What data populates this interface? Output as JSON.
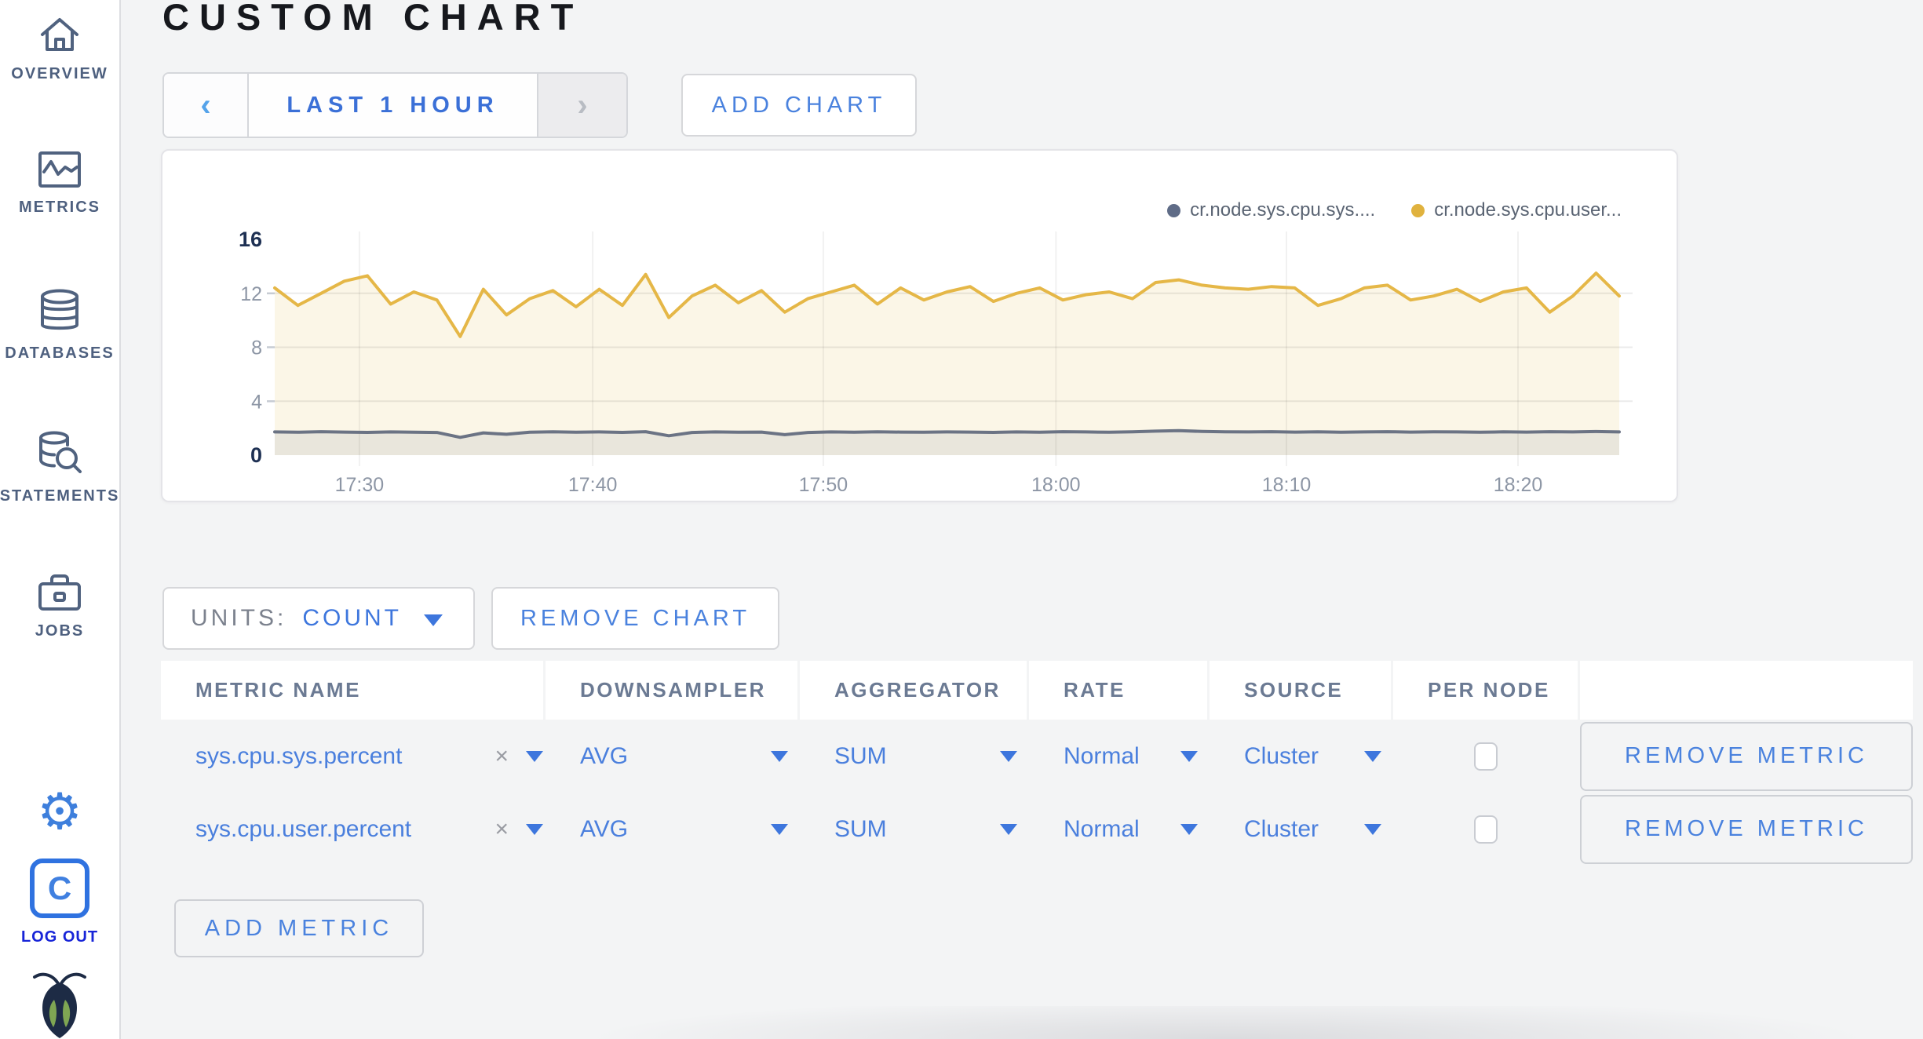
{
  "header": {
    "title": "CUSTOM CHART"
  },
  "sidebar": {
    "items": [
      {
        "label": "OVERVIEW",
        "icon": "home-icon"
      },
      {
        "label": "METRICS",
        "icon": "metrics-icon"
      },
      {
        "label": "DATABASES",
        "icon": "databases-icon"
      },
      {
        "label": "STATEMENTS",
        "icon": "statements-icon"
      },
      {
        "label": "JOBS",
        "icon": "jobs-icon"
      }
    ],
    "settings_icon": "gear-icon",
    "settings_glyph": "⚙",
    "logout": {
      "logo_letter": "C",
      "label": "LOG OUT"
    },
    "brand_icon": "cockroach-logo"
  },
  "toolbar": {
    "prev_arrow": "‹",
    "time_range": "LAST 1 HOUR",
    "next_arrow": "›",
    "add_chart": "ADD CHART"
  },
  "chart_data": {
    "type": "line",
    "title": "",
    "ylim": [
      0,
      16
    ],
    "y_ticks": [
      0,
      4,
      8,
      12,
      16
    ],
    "grid": true,
    "legend_position": "top-right",
    "x_range": [
      "17:26",
      "18:24"
    ],
    "x_ticks": [
      {
        "label": "17:30",
        "f": 0.063
      },
      {
        "label": "17:40",
        "f": 0.2365
      },
      {
        "label": "17:50",
        "f": 0.408
      },
      {
        "label": "18:00",
        "f": 0.581
      },
      {
        "label": "18:10",
        "f": 0.7525
      },
      {
        "label": "18:20",
        "f": 0.9247
      }
    ],
    "series": [
      {
        "name": "cr.node.sys.cpu.sys....",
        "line": "#6b7384",
        "fill": "#e9e6dc",
        "dot": "#5f6c87",
        "values": [
          1.72,
          1.7,
          1.74,
          1.71,
          1.69,
          1.72,
          1.7,
          1.68,
          1.32,
          1.65,
          1.55,
          1.7,
          1.73,
          1.7,
          1.72,
          1.69,
          1.74,
          1.44,
          1.68,
          1.72,
          1.7,
          1.71,
          1.52,
          1.68,
          1.72,
          1.7,
          1.73,
          1.71,
          1.7,
          1.72,
          1.71,
          1.69,
          1.72,
          1.7,
          1.74,
          1.72,
          1.7,
          1.73,
          1.78,
          1.82,
          1.76,
          1.73,
          1.72,
          1.74,
          1.71,
          1.73,
          1.7,
          1.72,
          1.74,
          1.71,
          1.73,
          1.72,
          1.7,
          1.73,
          1.71,
          1.74,
          1.72,
          1.75,
          1.72
        ]
      },
      {
        "name": "cr.node.sys.cpu.user...",
        "line": "#e5b747",
        "fill": "#fbf6e7",
        "dot": "#e0b23e",
        "values": [
          12.4,
          11.1,
          12.0,
          12.9,
          13.3,
          11.2,
          12.1,
          11.5,
          8.8,
          12.3,
          10.4,
          11.6,
          12.2,
          11.0,
          12.3,
          11.1,
          13.4,
          10.2,
          11.8,
          12.6,
          11.3,
          12.2,
          10.6,
          11.6,
          12.1,
          12.6,
          11.2,
          12.4,
          11.5,
          12.1,
          12.5,
          11.4,
          12.0,
          12.4,
          11.5,
          11.9,
          12.1,
          11.6,
          12.8,
          13.0,
          12.6,
          12.4,
          12.3,
          12.5,
          12.4,
          11.1,
          11.6,
          12.4,
          12.6,
          11.5,
          11.8,
          12.3,
          11.4,
          12.1,
          12.4,
          10.6,
          11.8,
          13.5,
          11.8
        ]
      }
    ]
  },
  "units": {
    "label": "UNITS:",
    "value": "COUNT"
  },
  "remove_chart_label": "REMOVE CHART",
  "table": {
    "columns": [
      "METRIC NAME",
      "DOWNSAMPLER",
      "AGGREGATOR",
      "RATE",
      "SOURCE",
      "PER NODE",
      ""
    ],
    "clear_glyph": "×",
    "rows": [
      {
        "metric": "sys.cpu.sys.percent",
        "downsampler": "AVG",
        "aggregator": "SUM",
        "rate": "Normal",
        "source": "Cluster",
        "per_node_checked": false,
        "remove_label": "REMOVE METRIC"
      },
      {
        "metric": "sys.cpu.user.percent",
        "downsampler": "AVG",
        "aggregator": "SUM",
        "rate": "Normal",
        "source": "Cluster",
        "per_node_checked": false,
        "remove_label": "REMOVE METRIC"
      }
    ]
  },
  "add_metric_label": "ADD METRIC"
}
